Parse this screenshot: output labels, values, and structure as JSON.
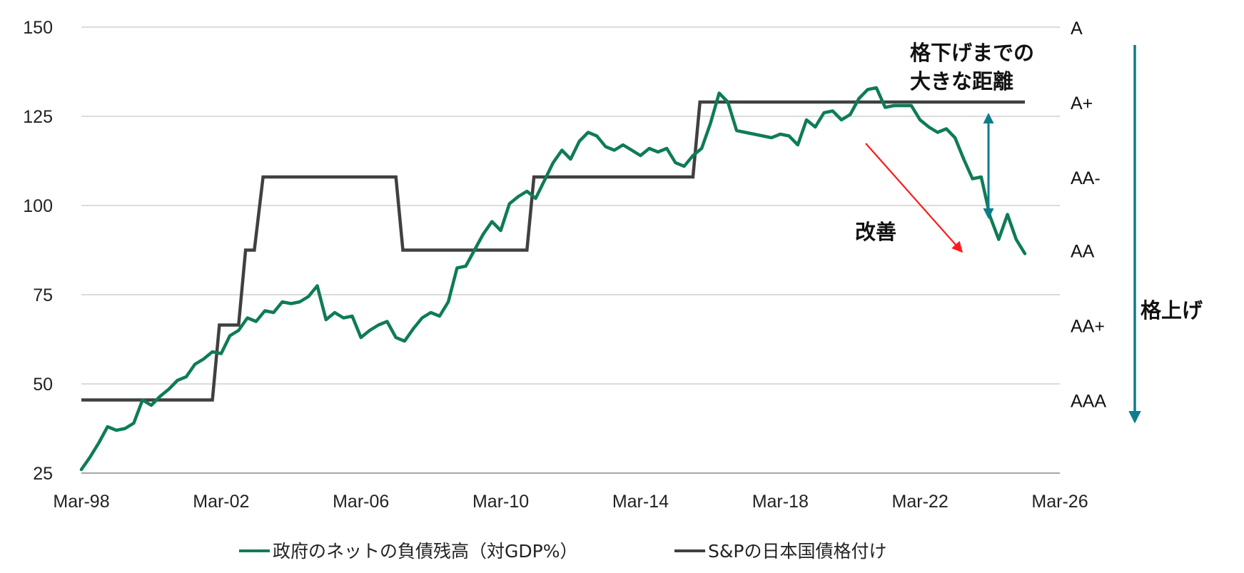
{
  "chart_data": {
    "type": "line",
    "x_ticks": [
      "Mar-98",
      "Mar-02",
      "Mar-06",
      "Mar-10",
      "Mar-14",
      "Mar-18",
      "Mar-22",
      "Mar-26"
    ],
    "xlim": [
      1998.0,
      2026.0
    ],
    "ylim": [
      25,
      150
    ],
    "y_ticks": [
      150,
      125,
      100,
      75,
      50,
      25
    ],
    "grid": true,
    "legend_position": "bottom",
    "series": [
      {
        "name": "政府のネットの負債残高（対GDP%）",
        "color": "#0e7c55",
        "points": [
          [
            1998.0,
            26.0
          ],
          [
            1998.25,
            29.5
          ],
          [
            1998.5,
            33.5
          ],
          [
            1998.75,
            38.0
          ],
          [
            1999.0,
            37.0
          ],
          [
            1999.25,
            37.5
          ],
          [
            1999.5,
            39.0
          ],
          [
            1999.75,
            45.5
          ],
          [
            2000.0,
            44.0
          ],
          [
            2000.25,
            46.5
          ],
          [
            2000.5,
            48.5
          ],
          [
            2000.75,
            51.0
          ],
          [
            2001.0,
            52.0
          ],
          [
            2001.25,
            55.5
          ],
          [
            2001.5,
            57.0
          ],
          [
            2001.75,
            59.0
          ],
          [
            2002.0,
            58.5
          ],
          [
            2002.25,
            63.5
          ],
          [
            2002.5,
            65.0
          ],
          [
            2002.75,
            68.5
          ],
          [
            2003.0,
            67.5
          ],
          [
            2003.25,
            70.5
          ],
          [
            2003.5,
            70.0
          ],
          [
            2003.75,
            73.0
          ],
          [
            2004.0,
            72.5
          ],
          [
            2004.25,
            73.0
          ],
          [
            2004.5,
            74.5
          ],
          [
            2004.75,
            77.5
          ],
          [
            2005.0,
            68.0
          ],
          [
            2005.25,
            70.0
          ],
          [
            2005.5,
            68.5
          ],
          [
            2005.75,
            69.0
          ],
          [
            2006.0,
            63.0
          ],
          [
            2006.25,
            65.0
          ],
          [
            2006.5,
            66.5
          ],
          [
            2006.75,
            67.5
          ],
          [
            2007.0,
            63.0
          ],
          [
            2007.25,
            62.0
          ],
          [
            2007.5,
            65.5
          ],
          [
            2007.75,
            68.5
          ],
          [
            2008.0,
            70.0
          ],
          [
            2008.25,
            69.0
          ],
          [
            2008.5,
            73.0
          ],
          [
            2008.75,
            82.5
          ],
          [
            2009.0,
            83.0
          ],
          [
            2009.25,
            87.5
          ],
          [
            2009.5,
            92.0
          ],
          [
            2009.75,
            95.5
          ],
          [
            2010.0,
            93.0
          ],
          [
            2010.25,
            100.5
          ],
          [
            2010.5,
            102.5
          ],
          [
            2010.75,
            104.0
          ],
          [
            2011.0,
            102.0
          ],
          [
            2011.25,
            107.0
          ],
          [
            2011.5,
            112.0
          ],
          [
            2011.75,
            115.5
          ],
          [
            2012.0,
            113.0
          ],
          [
            2012.25,
            118.0
          ],
          [
            2012.5,
            120.5
          ],
          [
            2012.75,
            119.5
          ],
          [
            2013.0,
            116.5
          ],
          [
            2013.25,
            115.5
          ],
          [
            2013.5,
            117.0
          ],
          [
            2013.75,
            115.5
          ],
          [
            2014.0,
            114.0
          ],
          [
            2014.25,
            116.0
          ],
          [
            2014.5,
            115.0
          ],
          [
            2014.75,
            116.0
          ],
          [
            2015.0,
            112.0
          ],
          [
            2015.25,
            111.0
          ],
          [
            2015.5,
            114.0
          ],
          [
            2015.75,
            116.0
          ],
          [
            2016.0,
            123.0
          ],
          [
            2016.25,
            131.5
          ],
          [
            2016.5,
            129.0
          ],
          [
            2016.75,
            121.0
          ],
          [
            2017.0,
            120.5
          ],
          [
            2017.25,
            120.0
          ],
          [
            2017.5,
            119.5
          ],
          [
            2017.75,
            119.0
          ],
          [
            2018.0,
            120.0
          ],
          [
            2018.25,
            119.5
          ],
          [
            2018.5,
            117.0
          ],
          [
            2018.75,
            124.0
          ],
          [
            2019.0,
            122.0
          ],
          [
            2019.25,
            126.0
          ],
          [
            2019.5,
            126.5
          ],
          [
            2019.75,
            124.0
          ],
          [
            2020.0,
            125.5
          ],
          [
            2020.25,
            130.0
          ],
          [
            2020.5,
            132.5
          ],
          [
            2020.75,
            133.0
          ],
          [
            2021.0,
            127.5
          ],
          [
            2021.25,
            128.0
          ],
          [
            2021.5,
            128.0
          ],
          [
            2021.75,
            128.0
          ],
          [
            2022.0,
            124.0
          ],
          [
            2022.25,
            122.0
          ],
          [
            2022.5,
            120.5
          ],
          [
            2022.75,
            121.5
          ],
          [
            2023.0,
            119.0
          ],
          [
            2023.25,
            113.0
          ],
          [
            2023.5,
            107.5
          ],
          [
            2023.75,
            108.0
          ],
          [
            2024.0,
            97.0
          ],
          [
            2024.25,
            90.5
          ],
          [
            2024.5,
            97.5
          ],
          [
            2024.75,
            90.5
          ],
          [
            2025.0,
            86.5
          ]
        ]
      },
      {
        "name": "S&Pの日本国債格付け",
        "color": "#404040",
        "step_points": [
          [
            1998.0,
            "AAA"
          ],
          [
            2001.75,
            "AAA"
          ],
          [
            2001.95,
            "AA+"
          ],
          [
            2002.5,
            "AA+"
          ],
          [
            2002.7,
            "AA"
          ],
          [
            2002.95,
            "AA"
          ],
          [
            2003.2,
            "AA-"
          ],
          [
            2007.0,
            "AA-"
          ],
          [
            2007.2,
            "AA"
          ],
          [
            2010.75,
            "AA"
          ],
          [
            2010.95,
            "AA-"
          ],
          [
            2015.5,
            "AA-"
          ],
          [
            2015.7,
            "A+"
          ],
          [
            2025.0,
            "A+"
          ]
        ]
      }
    ],
    "rating_axis": [
      {
        "label": "A",
        "value": 150
      },
      {
        "label": "A+",
        "value": 129
      },
      {
        "label": "AA-",
        "value": 108
      },
      {
        "label": "AA",
        "value": 87.5
      },
      {
        "label": "AA+",
        "value": 66.5
      },
      {
        "label": "AAA",
        "value": 45.5
      }
    ],
    "annotations": {
      "distance_label_line1": "格下げまでの",
      "distance_label_line2": "大きな距離",
      "improve_label": "改善",
      "upgrade_label": "格上げ"
    },
    "colors": {
      "gridline": "#d0d0d0",
      "axis": "#888888",
      "arrow_red": "#ff1a1a",
      "arrow_teal": "#0f7c8c"
    }
  }
}
